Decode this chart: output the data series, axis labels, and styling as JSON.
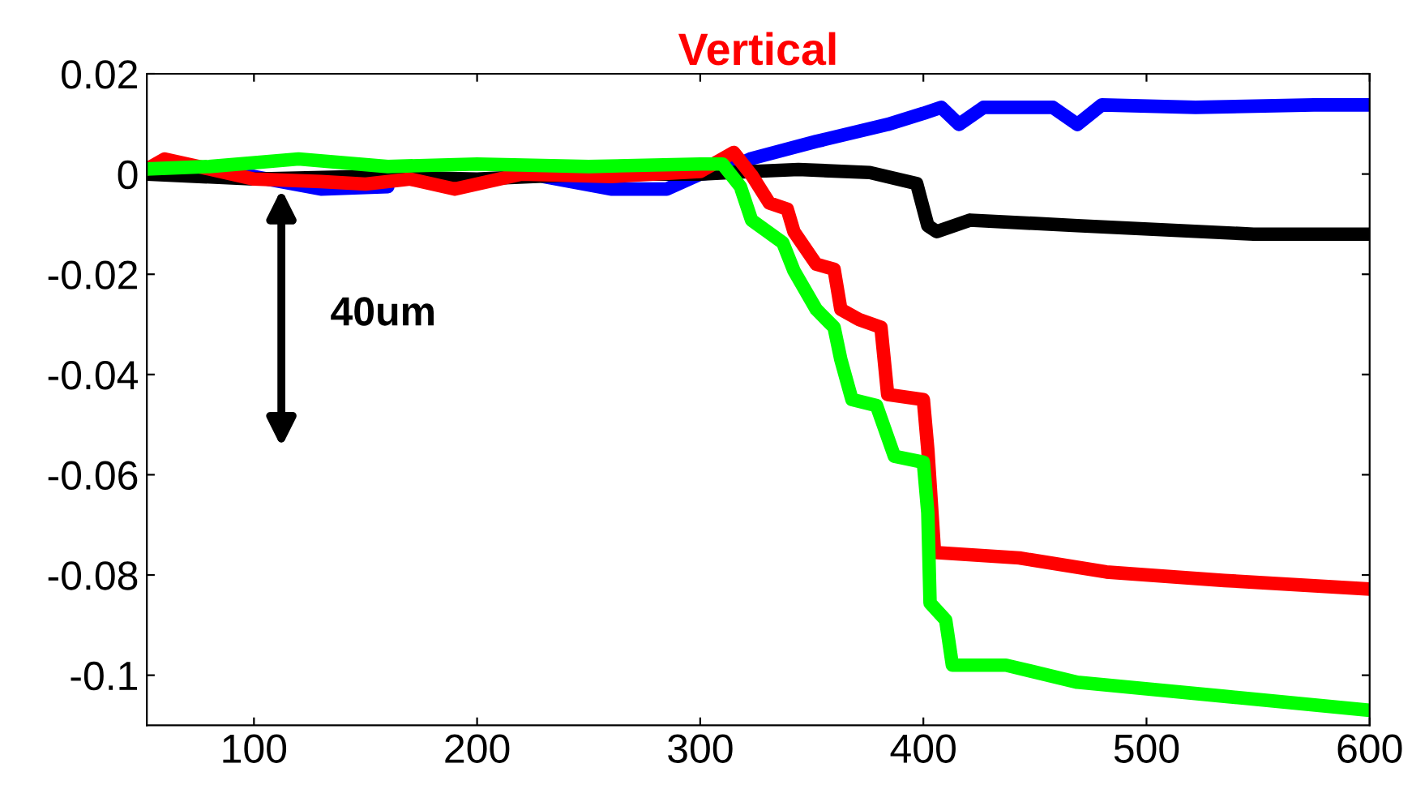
{
  "chart_data": {
    "type": "line",
    "title": "Vertical",
    "annotations": [
      "40um"
    ],
    "xlim": [
      52,
      600
    ],
    "ylim": [
      -0.11,
      0.02
    ],
    "xticks": [
      100,
      200,
      300,
      400,
      500,
      600
    ],
    "yticks": [
      0.02,
      0,
      -0.02,
      -0.04,
      -0.06,
      -0.08,
      -0.1
    ],
    "grid": false,
    "legend": false,
    "marker": "none",
    "line_style": "solid",
    "series": [
      {
        "color": "#0000ff",
        "x": [
          52,
          100,
          130,
          160,
          190,
          230,
          260,
          285,
          300,
          310,
          323,
          352,
          384,
          400,
          408,
          416,
          427,
          458,
          469,
          480,
          522,
          575,
          600
        ],
        "values": [
          0.0005,
          -0.0005,
          -0.003,
          -0.0025,
          null,
          -0.0005,
          -0.003,
          -0.003,
          0,
          0.0005,
          0.0031,
          0.0065,
          0.0099,
          0.0121,
          0.0133,
          0.0099,
          0.0133,
          0.0133,
          0.0099,
          0.0138,
          0.0133,
          0.0138,
          0.0138
        ]
      },
      {
        "color": "#000000",
        "x": [
          52,
          100,
          150,
          200,
          250,
          300,
          323,
          344,
          376,
          397,
          402,
          406,
          421,
          469,
          548,
          600
        ],
        "values": [
          0,
          -0.001,
          -0.0005,
          -0.001,
          0,
          0,
          0.0005,
          0.0009,
          0.0003,
          -0.0019,
          -0.0103,
          -0.0115,
          -0.0092,
          -0.0103,
          -0.012,
          -0.012
        ]
      },
      {
        "color": "#ff0000",
        "x": [
          52,
          60,
          90,
          100,
          130,
          150,
          170,
          190,
          220,
          260,
          300,
          315,
          323,
          331,
          339,
          342,
          352,
          360,
          363,
          371,
          381,
          384,
          400,
          402,
          405,
          443,
          482,
          535,
          600
        ],
        "values": [
          0.001,
          0.003,
          0,
          -0.001,
          -0.0015,
          -0.002,
          -0.001,
          -0.003,
          0,
          -0.0005,
          0.0005,
          0.0043,
          -0.0002,
          -0.0058,
          -0.007,
          -0.0115,
          -0.018,
          -0.019,
          -0.027,
          -0.029,
          -0.0306,
          -0.044,
          -0.045,
          -0.055,
          -0.0755,
          -0.0766,
          -0.0794,
          -0.0811,
          -0.0828
        ]
      },
      {
        "color": "#00ff00",
        "x": [
          52,
          80,
          120,
          160,
          200,
          250,
          300,
          310,
          318,
          323,
          337,
          342,
          352,
          360,
          363,
          368,
          379,
          387,
          400,
          402,
          403,
          410,
          413,
          437,
          469,
          535,
          600
        ],
        "values": [
          0.001,
          0.0015,
          0.003,
          0.0015,
          0.002,
          0.0015,
          0.002,
          0.002,
          -0.0025,
          -0.0092,
          -0.0137,
          -0.0193,
          -0.027,
          -0.0306,
          -0.037,
          -0.045,
          -0.0462,
          -0.0563,
          -0.0575,
          -0.0676,
          -0.0856,
          -0.089,
          -0.098,
          -0.098,
          -0.1014,
          -0.1042,
          -0.107
        ]
      }
    ]
  }
}
